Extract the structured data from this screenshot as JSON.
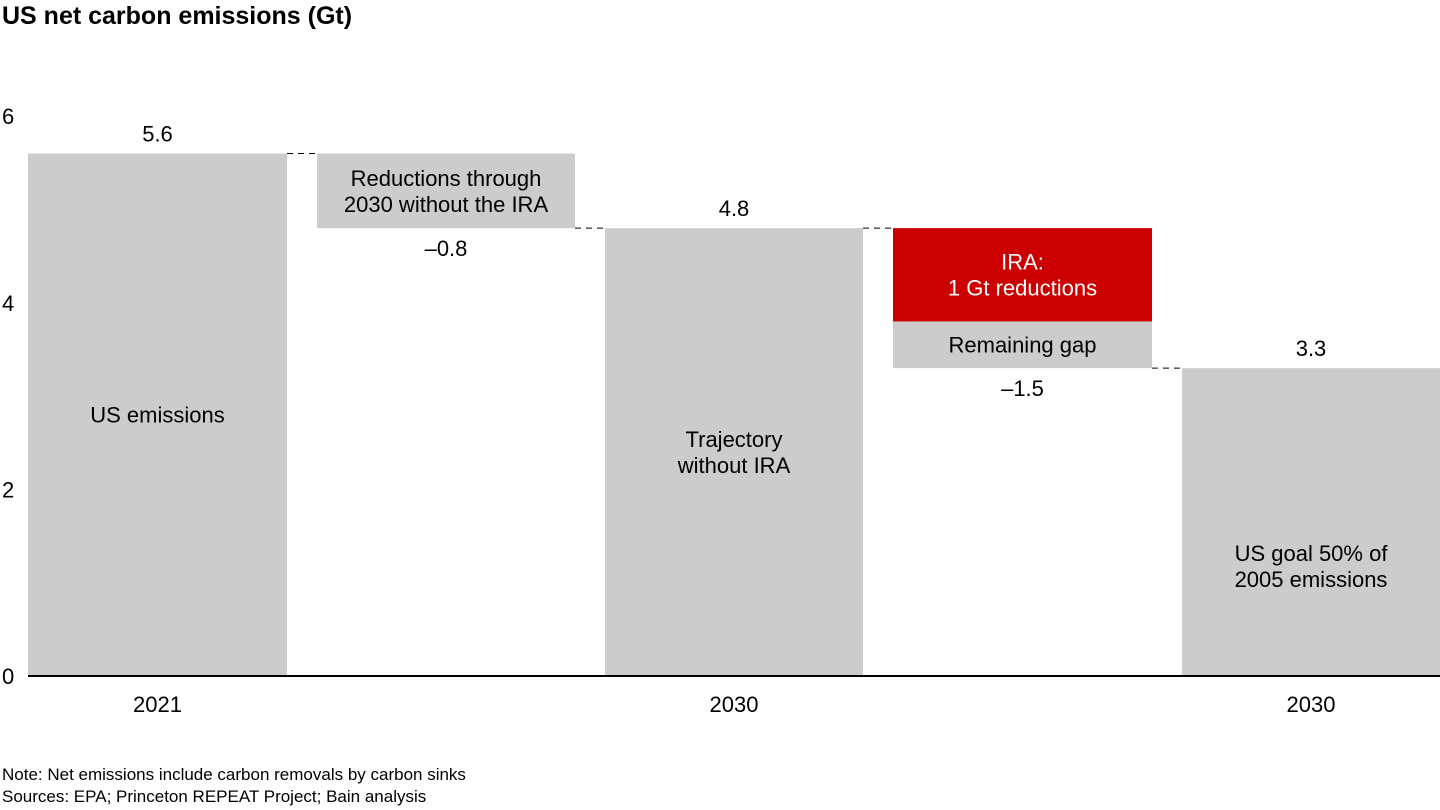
{
  "title": "US net carbon emissions (Gt)",
  "chart_data": {
    "type": "bar",
    "subtype": "waterfall",
    "title": "US net carbon emissions (Gt)",
    "ylim": [
      0,
      6
    ],
    "yticks": [
      0,
      2,
      4,
      6
    ],
    "grid": false,
    "steps": [
      {
        "kind": "total",
        "x_label": "2021",
        "value": 5.6,
        "value_label": "5.6",
        "bar_label": "US emissions",
        "color": "#cccccc"
      },
      {
        "kind": "delta",
        "x_label": "",
        "value": -0.8,
        "value_label": "–0.8",
        "bar_label": "Reductions through 2030 without the IRA",
        "bar_label_lines": [
          "Reductions through",
          "2030 without the IRA"
        ],
        "color": "#cccccc"
      },
      {
        "kind": "total",
        "x_label": "2030",
        "value": 4.8,
        "value_label": "4.8",
        "bar_label": "Trajectory without IRA",
        "bar_label_lines": [
          "Trajectory",
          "without IRA"
        ],
        "color": "#cccccc"
      },
      {
        "kind": "delta",
        "x_label": "",
        "value": -1.5,
        "value_label": "–1.5",
        "segments": [
          {
            "label_lines": [
              "IRA:",
              "1 Gt reductions"
            ],
            "value": -1.0,
            "color": "#cc0000",
            "text_color": "#ffffff"
          },
          {
            "label_lines": [
              "Remaining gap"
            ],
            "value": -0.5,
            "color": "#cccccc",
            "text_color": "#000000"
          }
        ]
      },
      {
        "kind": "total",
        "x_label": "2030",
        "value": 3.3,
        "value_label": "3.3",
        "bar_label": "US goal 50% of 2005 emissions",
        "bar_label_lines": [
          "US goal 50% of",
          "2005 emissions"
        ],
        "color": "#cccccc"
      }
    ]
  },
  "notes": {
    "note": "Note: Net emissions include carbon removals by carbon sinks",
    "sources": "Sources: EPA; Princeton REPEAT Project; Bain analysis"
  }
}
